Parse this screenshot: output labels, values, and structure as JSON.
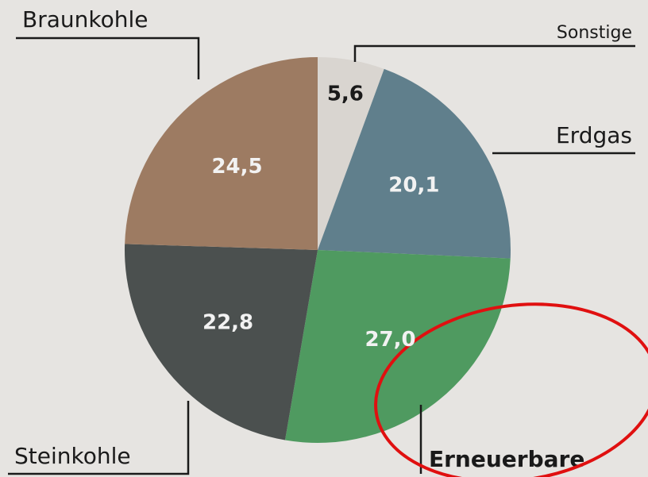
{
  "chart_data": {
    "type": "pie",
    "categories": [
      "Sonstige",
      "Erdgas",
      "Erneuerbare",
      "Steinkohle",
      "Braunkohle"
    ],
    "values": [
      5.6,
      20.1,
      27.0,
      22.8,
      24.5
    ],
    "value_labels": [
      "5,6",
      "20,1",
      "27,0",
      "22,8",
      "24,5"
    ],
    "colors": [
      "#d9d5d0",
      "#607f8c",
      "#4f9a60",
      "#4b504f",
      "#9d7b62"
    ]
  }
}
